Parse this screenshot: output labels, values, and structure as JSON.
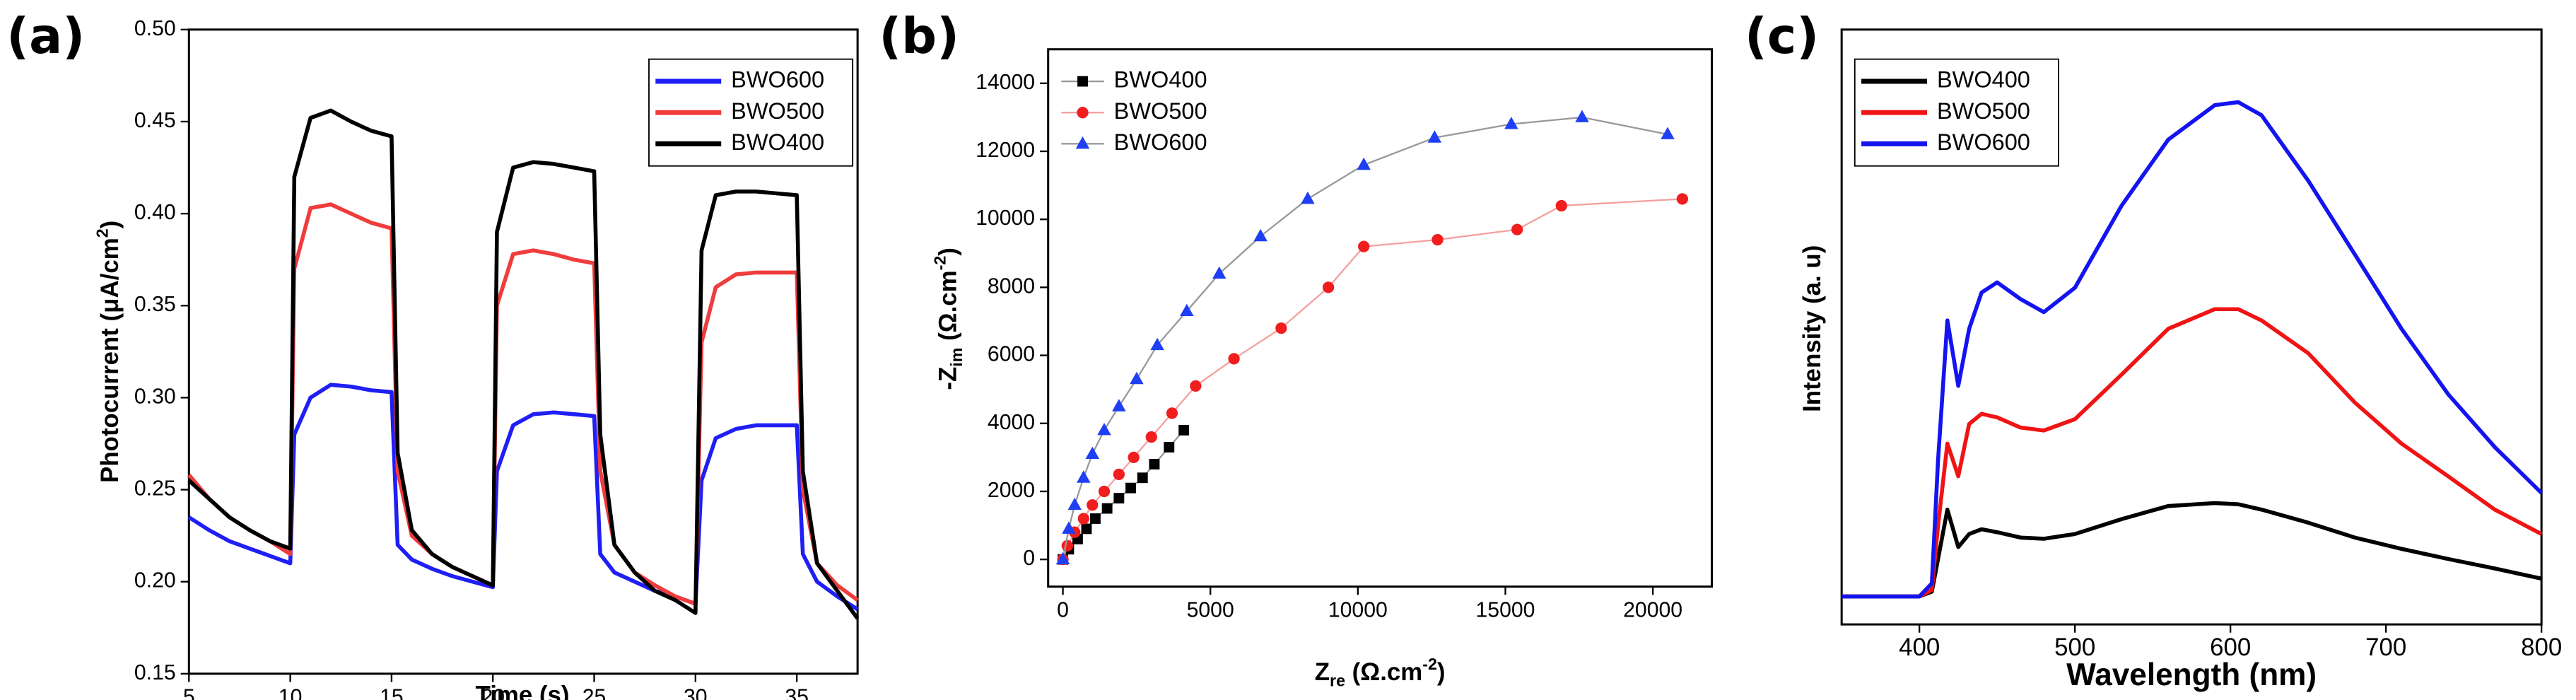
{
  "chart_data": [
    {
      "type": "line",
      "panel_label": "(a)",
      "xlabel": "Time (s)",
      "ylabel": [
        "Photocurrent (μA/cm",
        "2",
        ")"
      ],
      "xlim": [
        5,
        38
      ],
      "ylim": [
        0.15,
        0.5
      ],
      "xticks": [
        5,
        10,
        15,
        20,
        25,
        30,
        35
      ],
      "yticks": [
        0.15,
        {
          "value": 0.2,
          "label": "0.20"
        },
        0.25,
        {
          "value": 0.3,
          "label": "0.30"
        },
        0.35,
        {
          "value": 0.4,
          "label": "0.40"
        },
        0.45,
        {
          "value": 0.5,
          "label": "0.50"
        }
      ],
      "legend": "upper right",
      "legend_frame": true,
      "x": [
        5,
        6,
        7,
        8,
        9,
        10,
        10.2,
        11,
        12,
        13,
        14,
        15,
        15.3,
        16,
        17,
        18,
        19,
        20,
        20.2,
        21,
        22,
        23,
        24,
        25,
        25.3,
        26,
        27,
        28,
        29,
        30,
        30.3,
        31,
        32,
        33,
        34,
        35,
        35.3,
        36,
        37,
        38
      ],
      "series": [
        {
          "name": "BWO600",
          "color": "#1f1ff5",
          "values": [
            0.235,
            0.228,
            0.222,
            0.218,
            0.214,
            0.21,
            0.28,
            0.3,
            0.307,
            0.306,
            0.304,
            0.303,
            0.22,
            0.212,
            0.207,
            0.203,
            0.2,
            0.197,
            0.26,
            0.285,
            0.291,
            0.292,
            0.291,
            0.29,
            0.215,
            0.205,
            0.2,
            0.195,
            0.192,
            0.188,
            0.255,
            0.278,
            0.283,
            0.285,
            0.285,
            0.285,
            0.215,
            0.2,
            0.192,
            0.185
          ]
        },
        {
          "name": "BWO500",
          "color": "#f03c3c",
          "values": [
            0.258,
            0.245,
            0.235,
            0.228,
            0.222,
            0.215,
            0.37,
            0.403,
            0.405,
            0.4,
            0.395,
            0.392,
            0.26,
            0.225,
            0.215,
            0.208,
            0.203,
            0.198,
            0.35,
            0.378,
            0.38,
            0.378,
            0.375,
            0.373,
            0.26,
            0.22,
            0.205,
            0.198,
            0.192,
            0.188,
            0.33,
            0.36,
            0.367,
            0.368,
            0.368,
            0.368,
            0.25,
            0.21,
            0.198,
            0.19
          ]
        },
        {
          "name": "BWO400",
          "color": "#000000",
          "values": [
            0.255,
            0.245,
            0.235,
            0.228,
            0.222,
            0.218,
            0.42,
            0.452,
            0.456,
            0.45,
            0.445,
            0.442,
            0.27,
            0.228,
            0.215,
            0.208,
            0.203,
            0.198,
            0.39,
            0.425,
            0.428,
            0.427,
            0.425,
            0.423,
            0.28,
            0.22,
            0.205,
            0.195,
            0.19,
            0.183,
            0.38,
            0.41,
            0.412,
            0.412,
            0.411,
            0.41,
            0.26,
            0.21,
            0.195,
            0.18
          ]
        }
      ]
    },
    {
      "type": "scatter",
      "panel_label": "(b)",
      "xlabel": [
        "Z",
        "re",
        " (Ω.cm",
        "-2",
        ")"
      ],
      "ylabel": [
        "-Z",
        "im",
        " (Ω.cm",
        "-2",
        ")"
      ],
      "xlim": [
        -500,
        22000
      ],
      "ylim": [
        -800,
        15000
      ],
      "xticks": [
        0,
        5000,
        10000,
        15000,
        20000
      ],
      "yticks": [
        0,
        2000,
        4000,
        6000,
        8000,
        10000,
        12000,
        14000
      ],
      "legend": "upper left",
      "legend_frame": false,
      "series": [
        {
          "name": "BWO400",
          "color": "#000000",
          "line_color": "#999999",
          "marker": "square",
          "x": [
            0,
            200,
            500,
            800,
            1100,
            1500,
            1900,
            2300,
            2700,
            3100,
            3600,
            4100
          ],
          "values": [
            0,
            300,
            600,
            900,
            1200,
            1500,
            1800,
            2100,
            2400,
            2800,
            3300,
            3800
          ]
        },
        {
          "name": "BWO500",
          "color": "#f01e1e",
          "line_color": "#f5a0a0",
          "marker": "circle",
          "x": [
            0,
            150,
            400,
            700,
            1000,
            1400,
            1900,
            2400,
            3000,
            3700,
            4500,
            5800,
            7400,
            9000,
            10200,
            12700,
            15400,
            16900,
            21000
          ],
          "values": [
            0,
            400,
            800,
            1200,
            1600,
            2000,
            2500,
            3000,
            3600,
            4300,
            5100,
            5900,
            6800,
            8000,
            9200,
            9400,
            9700,
            10400,
            10600
          ]
        },
        {
          "name": "BWO600",
          "color": "#1f3ff5",
          "line_color": "#999999",
          "marker": "triangle",
          "x": [
            0,
            200,
            400,
            700,
            1000,
            1400,
            1900,
            2500,
            3200,
            4200,
            5300,
            6700,
            8300,
            10200,
            12600,
            15200,
            17600,
            20500
          ],
          "values": [
            0,
            900,
            1600,
            2400,
            3100,
            3800,
            4500,
            5300,
            6300,
            7300,
            8400,
            9500,
            10600,
            11600,
            12400,
            12800,
            13000,
            12500
          ]
        }
      ]
    },
    {
      "type": "line",
      "panel_label": "(c)",
      "xlabel": "Wavelength (nm)",
      "ylabel": "Intensity (a. u)",
      "xlim": [
        350,
        800
      ],
      "ylim": [
        0,
        100
      ],
      "xticks": [
        400,
        500,
        600,
        700,
        800
      ],
      "legend": "upper left",
      "legend_frame": true,
      "x": [
        350,
        400,
        408,
        412,
        418,
        425,
        432,
        440,
        450,
        465,
        480,
        500,
        530,
        560,
        590,
        605,
        620,
        650,
        680,
        710,
        740,
        770,
        800
      ],
      "series": [
        {
          "name": "BWO400",
          "color": "#000000",
          "values": [
            4.7,
            4.7,
            5.5,
            11,
            19.3,
            13,
            15.2,
            16,
            15.5,
            14.6,
            14.4,
            15.2,
            17.7,
            19.9,
            20.4,
            20.2,
            19.3,
            17.1,
            14.6,
            12.7,
            11,
            9.4,
            7.7
          ]
        },
        {
          "name": "BWO500",
          "color": "#f01414",
          "values": [
            4.7,
            4.7,
            5.8,
            16.6,
            30.4,
            24.9,
            33.7,
            35.4,
            34.8,
            33.1,
            32.6,
            34.5,
            42,
            49.7,
            53,
            53,
            51.1,
            45.6,
            37.3,
            30.4,
            24.9,
            19.3,
            15.2
          ]
        },
        {
          "name": "BWO600",
          "color": "#1414f0",
          "values": [
            4.7,
            4.7,
            6.9,
            27.6,
            51.1,
            40.1,
            49.7,
            55.8,
            57.5,
            54.7,
            52.5,
            56.6,
            70.4,
            81.5,
            87.3,
            87.8,
            85.6,
            74.6,
            62.2,
            49.7,
            38.7,
            29.8,
            22.1
          ]
        }
      ]
    }
  ]
}
